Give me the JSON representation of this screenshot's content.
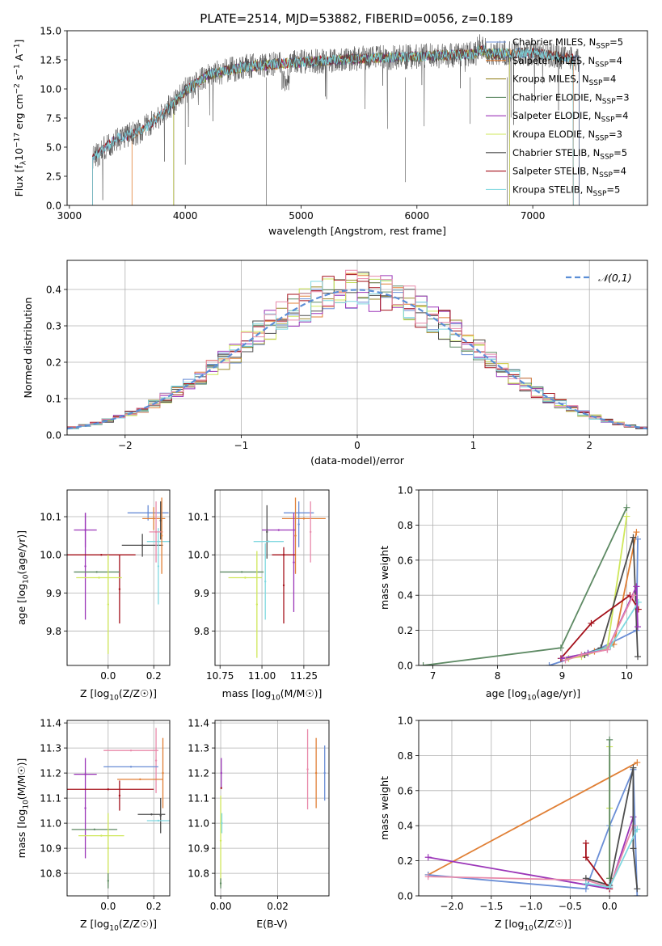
{
  "figure": {
    "title": "PLATE=2514, MJD=53882, FIBERID=0056, z=0.189"
  },
  "palette": {
    "blue": "#6a8ed6",
    "orange": "#e07f35",
    "olive": "#9a8a2c",
    "green": "#5e8a64",
    "purple": "#9b35b8",
    "lime": "#cfe75a",
    "dark": "#4d4d4d",
    "red": "#a4101a",
    "cyan": "#7fd8e0",
    "pink": "#e88aaa"
  },
  "chart_data": [
    {
      "id": "spectrum",
      "type": "line",
      "xlabel": "wavelength [Angstrom, rest frame]",
      "ylabel": "Flux [f_λ10^−17 erg cm^−2 s^−1 A^−1]",
      "xlim": [
        2980,
        7990
      ],
      "ylim": [
        0,
        15
      ],
      "xticks": [
        3000,
        4000,
        5000,
        6000,
        7000
      ],
      "yticks": [
        0.0,
        2.5,
        5.0,
        7.5,
        10.0,
        12.5,
        15.0
      ],
      "grid": false,
      "legend_position": "upper-right",
      "series": [
        {
          "name": "Chabrier MILES, N_SSP=5",
          "color": "blue"
        },
        {
          "name": "Salpeter MILES, N_SSP=4",
          "color": "orange"
        },
        {
          "name": "Kroupa MILES, N_SSP=4",
          "color": "olive"
        },
        {
          "name": "Chabrier ELODIE, N_SSP=3",
          "color": "green"
        },
        {
          "name": "Salpeter ELODIE, N_SSP=4",
          "color": "purple"
        },
        {
          "name": "Kroupa ELODIE, N_SSP=3",
          "color": "lime"
        },
        {
          "name": "Chabrier STELIB, N_SSP=5",
          "color": "dark"
        },
        {
          "name": "Salpeter STELIB, N_SSP=4",
          "color": "red"
        },
        {
          "name": "Kroupa STELIB, N_SSP=5",
          "color": "cyan"
        }
      ],
      "continuum": {
        "x": [
          3200,
          3400,
          3600,
          3800,
          4000,
          4200,
          4500,
          5000,
          5500,
          6000,
          6500,
          7000,
          7400
        ],
        "y": [
          4.0,
          5.7,
          6.3,
          7.8,
          9.8,
          11.2,
          11.9,
          12.3,
          12.6,
          12.8,
          13.0,
          13.1,
          12.5
        ]
      }
    },
    {
      "id": "residuals",
      "type": "histogram",
      "xlabel": "(data-model)/error",
      "ylabel": "Normed distribution",
      "xlim": [
        -2.5,
        2.5
      ],
      "ylim": [
        0,
        0.48
      ],
      "xticks": [
        -2,
        -1,
        0,
        1,
        2
      ],
      "yticks": [
        0.0,
        0.1,
        0.2,
        0.3,
        0.4
      ],
      "grid": true,
      "legend_position": "upper-right",
      "reference": {
        "name": "𝒩(0,1)",
        "mean": 0,
        "sigma": 1,
        "color": "#5b8ed6"
      },
      "bin_width": 0.1
    },
    {
      "id": "age_vs_Z",
      "type": "errorbar",
      "xlabel": "Z [log10(Z/Z☉)]",
      "ylabel": "age [log10(age/yr)]",
      "xlim": [
        -0.18,
        0.27
      ],
      "ylim": [
        9.71,
        10.17
      ],
      "xticks": [
        0.0,
        0.2
      ],
      "yticks": [
        9.8,
        9.9,
        10.0,
        10.1
      ],
      "grid": true,
      "points": [
        {
          "color": "blue",
          "x": 0.175,
          "xerr": 0.09,
          "y": 10.11,
          "yerr": 0.02
        },
        {
          "color": "orange",
          "x": 0.2,
          "xerr": 0.05,
          "y": 10.095,
          "yerr": 0.03
        },
        {
          "color": "purple",
          "x": -0.1,
          "xerr": 0.05,
          "y": 10.065,
          "yerr": 0.045
        },
        {
          "color": "purple",
          "x": -0.1,
          "xerr": 0.0,
          "y": 9.97,
          "yerr": 0.14
        },
        {
          "color": "dark",
          "x": 0.23,
          "xerr": 0.0,
          "y": 10.09,
          "yerr": 0.05
        },
        {
          "color": "dark",
          "x": 0.15,
          "xerr": 0.09,
          "y": 10.025,
          "yerr": 0.03
        },
        {
          "color": "red",
          "x": -0.03,
          "xerr": 0.15,
          "y": 10.0,
          "yerr": 0.0
        },
        {
          "color": "red",
          "x": 0.05,
          "xerr": 0.0,
          "y": 9.91,
          "yerr": 0.09
        },
        {
          "color": "cyan",
          "x": 0.22,
          "xerr": 0.05,
          "y": 10.035,
          "yerr": 0.0
        },
        {
          "color": "cyan",
          "x": 0.22,
          "xerr": 0.0,
          "y": 9.97,
          "yerr": 0.1
        },
        {
          "color": "green",
          "x": -0.05,
          "xerr": 0.1,
          "y": 9.955,
          "yerr": 0.0
        },
        {
          "color": "lime",
          "x": -0.04,
          "xerr": 0.1,
          "y": 9.94,
          "yerr": 0.0
        },
        {
          "color": "lime",
          "x": 0.0,
          "xerr": 0.0,
          "y": 9.87,
          "yerr": 0.13
        },
        {
          "color": "pink",
          "x": 0.21,
          "xerr": 0.03,
          "y": 10.06,
          "yerr": 0.08
        },
        {
          "color": "orange",
          "x": 0.235,
          "xerr": 0.0,
          "y": 10.05,
          "yerr": 0.1
        }
      ]
    },
    {
      "id": "age_vs_mass",
      "type": "errorbar",
      "xlabel": "mass [log10(M/M☉)]",
      "ylabel": "",
      "xlim": [
        10.72,
        11.4
      ],
      "ylim": [
        9.71,
        10.17
      ],
      "xticks": [
        10.75,
        11.0,
        11.25
      ],
      "yticks": [
        9.8,
        9.9,
        10.0,
        10.1
      ],
      "grid": true,
      "points": [
        {
          "color": "blue",
          "x": 11.22,
          "xerr": 0.09,
          "y": 10.11,
          "yerr": 0.0
        },
        {
          "color": "blue",
          "x": 11.22,
          "xerr": 0.0,
          "y": 10.08,
          "yerr": 0.06
        },
        {
          "color": "orange",
          "x": 11.25,
          "xerr": 0.13,
          "y": 10.095,
          "yerr": 0.0
        },
        {
          "color": "orange",
          "x": 11.2,
          "xerr": 0.0,
          "y": 10.05,
          "yerr": 0.1
        },
        {
          "color": "purple",
          "x": 11.1,
          "xerr": 0.1,
          "y": 10.065,
          "yerr": 0.0
        },
        {
          "color": "purple",
          "x": 11.19,
          "xerr": 0.0,
          "y": 9.98,
          "yerr": 0.13
        },
        {
          "color": "pink",
          "x": 11.29,
          "xerr": 0.0,
          "y": 10.06,
          "yerr": 0.08
        },
        {
          "color": "dark",
          "x": 11.03,
          "xerr": 0.0,
          "y": 10.06,
          "yerr": 0.07
        },
        {
          "color": "red",
          "x": 11.13,
          "xerr": 0.07,
          "y": 10.0,
          "yerr": 0.0
        },
        {
          "color": "red",
          "x": 11.13,
          "xerr": 0.0,
          "y": 9.92,
          "yerr": 0.1
        },
        {
          "color": "green",
          "x": 10.88,
          "xerr": 0.13,
          "y": 9.955,
          "yerr": 0.0
        },
        {
          "color": "lime",
          "x": 10.9,
          "xerr": 0.1,
          "y": 9.94,
          "yerr": 0.0
        },
        {
          "color": "lime",
          "x": 10.97,
          "xerr": 0.0,
          "y": 9.87,
          "yerr": 0.14
        },
        {
          "color": "cyan",
          "x": 11.04,
          "xerr": 0.09,
          "y": 10.035,
          "yerr": 0.0
        },
        {
          "color": "cyan",
          "x": 11.02,
          "xerr": 0.0,
          "y": 9.93,
          "yerr": 0.1
        }
      ]
    },
    {
      "id": "mass_weight_vs_age",
      "type": "line",
      "xlabel": "age [log10(age/yr)]",
      "ylabel": "mass weight",
      "xlim": [
        6.78,
        10.32
      ],
      "ylim": [
        0.0,
        1.0
      ],
      "xticks": [
        7,
        8,
        9,
        10
      ],
      "yticks": [
        0.0,
        0.2,
        0.4,
        0.6,
        0.8,
        1.0
      ],
      "grid": true,
      "series": [
        {
          "color": "green",
          "x": [
            6.85,
            8.98,
            10.0
          ],
          "y": [
            0.0,
            0.1,
            0.9
          ]
        },
        {
          "color": "blue",
          "x": [
            8.8,
            9.3,
            9.6,
            10.15,
            10.17
          ],
          "y": [
            0.0,
            0.06,
            0.1,
            0.2,
            0.72
          ]
        },
        {
          "color": "orange",
          "x": [
            9.1,
            9.5,
            9.8,
            10.15
          ],
          "y": [
            0.04,
            0.08,
            0.12,
            0.76
          ]
        },
        {
          "color": "lime",
          "x": [
            9.1,
            9.3,
            9.7,
            10.0
          ],
          "y": [
            0.04,
            0.05,
            0.1,
            0.85
          ]
        },
        {
          "color": "dark",
          "x": [
            9.0,
            9.35,
            9.6,
            10.1,
            10.17
          ],
          "y": [
            0.04,
            0.06,
            0.1,
            0.73,
            0.05
          ]
        },
        {
          "color": "red",
          "x": [
            8.98,
            9.45,
            10.05,
            10.18
          ],
          "y": [
            0.04,
            0.24,
            0.4,
            0.32
          ]
        },
        {
          "color": "cyan",
          "x": [
            9.0,
            9.4,
            9.75,
            10.18
          ],
          "y": [
            0.04,
            0.07,
            0.11,
            0.36
          ]
        },
        {
          "color": "purple",
          "x": [
            9.0,
            9.4,
            9.7,
            10.15,
            10.17
          ],
          "y": [
            0.04,
            0.07,
            0.09,
            0.45,
            0.22
          ]
        },
        {
          "color": "pink",
          "x": [
            9.05,
            9.3,
            9.7,
            10.1
          ],
          "y": [
            0.03,
            0.06,
            0.09,
            0.4
          ]
        }
      ]
    },
    {
      "id": "mass_vs_Z",
      "type": "errorbar",
      "xlabel": "Z [log10(Z/Z☉)]",
      "ylabel": "mass [log10(M/M☉)]",
      "xlim": [
        -0.18,
        0.27
      ],
      "ylim": [
        10.71,
        11.41
      ],
      "xticks": [
        0.0,
        0.2
      ],
      "yticks": [
        10.8,
        10.9,
        11.0,
        11.1,
        11.2,
        11.3,
        11.4
      ],
      "grid": true,
      "points": [
        {
          "color": "pink",
          "x": 0.1,
          "xerr": 0.12,
          "y": 11.29,
          "yerr": 0.0
        },
        {
          "color": "pink",
          "x": 0.21,
          "xerr": 0.0,
          "y": 11.25,
          "yerr": 0.13
        },
        {
          "color": "blue",
          "x": 0.1,
          "xerr": 0.12,
          "y": 11.225,
          "yerr": 0.0
        },
        {
          "color": "purple",
          "x": -0.1,
          "xerr": 0.05,
          "y": 11.195,
          "yerr": 0.0
        },
        {
          "color": "purple",
          "x": -0.1,
          "xerr": 0.0,
          "y": 11.06,
          "yerr": 0.2
        },
        {
          "color": "orange",
          "x": 0.14,
          "xerr": 0.1,
          "y": 11.175,
          "yerr": 0.0
        },
        {
          "color": "orange",
          "x": 0.24,
          "xerr": 0.0,
          "y": 11.2,
          "yerr": 0.14
        },
        {
          "color": "red",
          "x": 0.0,
          "xerr": 0.2,
          "y": 11.135,
          "yerr": 0.0
        },
        {
          "color": "red",
          "x": 0.05,
          "xerr": 0.0,
          "y": 11.11,
          "yerr": 0.06
        },
        {
          "color": "dark",
          "x": 0.19,
          "xerr": 0.06,
          "y": 11.035,
          "yerr": 0.0
        },
        {
          "color": "dark",
          "x": 0.23,
          "xerr": 0.0,
          "y": 11.03,
          "yerr": 0.07
        },
        {
          "color": "cyan",
          "x": 0.22,
          "xerr": 0.05,
          "y": 11.01,
          "yerr": 0.0
        },
        {
          "color": "green",
          "x": -0.06,
          "xerr": 0.1,
          "y": 10.975,
          "yerr": 0.0
        },
        {
          "color": "lime",
          "x": -0.03,
          "xerr": 0.1,
          "y": 10.95,
          "yerr": 0.0
        },
        {
          "color": "lime",
          "x": 0.0,
          "xerr": 0.0,
          "y": 10.9,
          "yerr": 0.14
        },
        {
          "color": "green",
          "x": 0.0,
          "xerr": 0.0,
          "y": 10.77,
          "yerr": 0.03
        }
      ]
    },
    {
      "id": "mass_vs_ebv",
      "type": "errorbar",
      "xlabel": "E(B-V)",
      "ylabel": "",
      "xlim": [
        -0.002,
        0.038
      ],
      "ylim": [
        10.71,
        11.41
      ],
      "xticks": [
        0.0,
        0.02
      ],
      "yticks": [
        10.8,
        10.9,
        11.0,
        11.1,
        11.2,
        11.3,
        11.4
      ],
      "grid": true,
      "points": [
        {
          "color": "pink",
          "x": 0.0305,
          "xerr": 0.0,
          "y": 11.215,
          "yerr": 0.16
        },
        {
          "color": "orange",
          "x": 0.0335,
          "xerr": 0.0,
          "y": 11.2,
          "yerr": 0.14
        },
        {
          "color": "blue",
          "x": 0.0365,
          "xerr": 0.0,
          "y": 11.2,
          "yerr": 0.11
        },
        {
          "color": "purple",
          "x": 0.0002,
          "xerr": 0.0,
          "y": 11.2,
          "yerr": 0.06
        },
        {
          "color": "red",
          "x": 0.0002,
          "xerr": 0.0,
          "y": 11.14,
          "yerr": 0.0
        },
        {
          "color": "lime",
          "x": 0.0,
          "xerr": 0.0,
          "y": 10.93,
          "yerr": 0.18
        },
        {
          "color": "cyan",
          "x": 0.0004,
          "xerr": 0.0,
          "y": 11.0,
          "yerr": 0.04
        },
        {
          "color": "green",
          "x": 0.0,
          "xerr": 0.0,
          "y": 10.76,
          "yerr": 0.02
        }
      ]
    },
    {
      "id": "mass_weight_vs_Z",
      "type": "line",
      "xlabel": "Z [log10(Z/Z☉)]",
      "ylabel": "mass weight",
      "xlim": [
        -2.42,
        0.48
      ],
      "ylim": [
        0.0,
        1.0
      ],
      "xticks": [
        -2.0,
        -1.5,
        -1.0,
        -0.5,
        0.0
      ],
      "yticks": [
        0.0,
        0.2,
        0.4,
        0.6,
        0.8,
        1.0
      ],
      "grid": true,
      "series": [
        {
          "color": "orange",
          "x": [
            -2.3,
            0.35
          ],
          "y": [
            0.12,
            0.76
          ]
        },
        {
          "color": "purple",
          "x": [
            -2.3,
            0.0,
            0.3
          ],
          "y": [
            0.22,
            0.04,
            0.45
          ]
        },
        {
          "color": "blue",
          "x": [
            -2.3,
            -0.3,
            0.0,
            0.3,
            0.35
          ],
          "y": [
            0.12,
            0.04,
            0.4,
            0.72,
            0.0
          ]
        },
        {
          "color": "pink",
          "x": [
            -2.3,
            -0.3,
            0.0,
            0.3
          ],
          "y": [
            0.11,
            0.09,
            0.05,
            0.4
          ]
        },
        {
          "color": "lime",
          "x": [
            0.0,
            0.0,
            0.0
          ],
          "y": [
            0.85,
            0.5,
            0.1
          ]
        },
        {
          "color": "green",
          "x": [
            0.0,
            0.0
          ],
          "y": [
            0.89,
            0.1
          ]
        },
        {
          "color": "dark",
          "x": [
            -0.3,
            0.0,
            0.3,
            0.3,
            0.35
          ],
          "y": [
            0.1,
            0.06,
            0.73,
            0.27,
            0.04
          ]
        },
        {
          "color": "red",
          "x": [
            -0.3,
            -0.3,
            0.0
          ],
          "y": [
            0.3,
            0.22,
            0.04
          ]
        },
        {
          "color": "cyan",
          "x": [
            -0.3,
            0.0,
            0.35
          ],
          "y": [
            0.07,
            0.05,
            0.38
          ]
        }
      ]
    }
  ]
}
